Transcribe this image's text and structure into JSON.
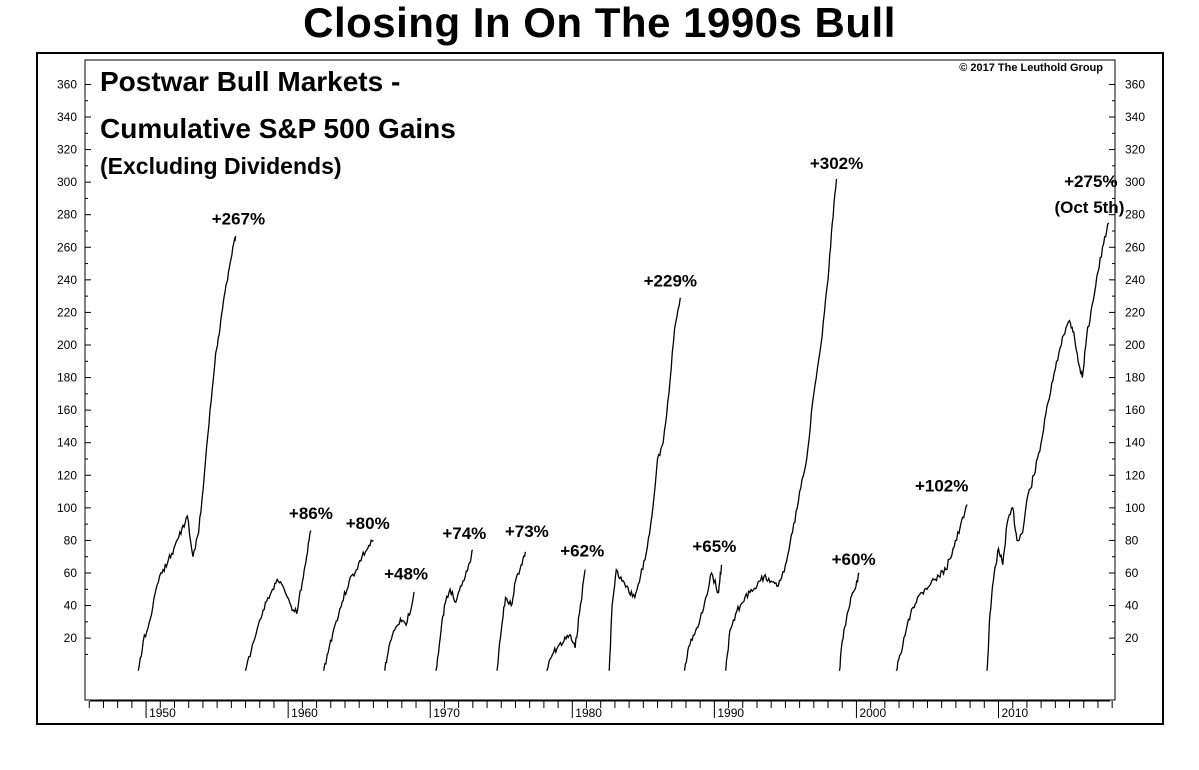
{
  "headline": "Closing In On The 1990s Bull",
  "copyright": "© 2017 The Leuthold  Group",
  "chart_data": {
    "type": "line",
    "title": "Postwar Bull Markets -",
    "title_line2": "Cumulative S&P 500 Gains",
    "subtitle": "(Excluding Dividends)",
    "xlabel": "",
    "ylabel": "",
    "x_ticks": [
      "1950",
      "1960",
      "1970",
      "1980",
      "1990",
      "2000",
      "2010"
    ],
    "y_ticks": [
      20,
      40,
      60,
      80,
      100,
      120,
      140,
      160,
      180,
      200,
      220,
      240,
      260,
      280,
      300,
      320,
      340,
      360
    ],
    "xlim": [
      1945.7,
      2018.2
    ],
    "ylim": [
      -18,
      375
    ],
    "grid": false,
    "series": [
      {
        "x": [
          1949.45,
          1949.8,
          1950.3,
          1950.7,
          1951.2,
          1951.8,
          1952.3,
          1952.9,
          1953.3,
          1953.7,
          1954.1,
          1954.5,
          1954.9,
          1955.2,
          1955.5,
          1955.8,
          1956.1,
          1956.3
        ],
        "y": [
          0,
          18,
          32,
          50,
          62,
          72,
          82,
          95,
          70,
          85,
          120,
          160,
          195,
          210,
          230,
          245,
          260,
          267
        ]
      },
      {
        "x": [
          1957.0,
          1957.4,
          1957.9,
          1958.4,
          1958.9,
          1959.3,
          1959.8,
          1960.2,
          1960.6,
          1961.0,
          1961.3,
          1961.6
        ],
        "y": [
          0,
          12,
          28,
          42,
          50,
          55,
          48,
          40,
          35,
          55,
          70,
          86
        ]
      },
      {
        "x": [
          1962.5,
          1962.9,
          1963.3,
          1963.8,
          1964.3,
          1964.8,
          1965.2,
          1965.6,
          1966.0
        ],
        "y": [
          0,
          15,
          28,
          42,
          55,
          62,
          70,
          75,
          80
        ]
      },
      {
        "x": [
          1966.8,
          1967.1,
          1967.5,
          1967.9,
          1968.3,
          1968.7,
          1968.9
        ],
        "y": [
          0,
          15,
          25,
          32,
          28,
          40,
          48
        ]
      },
      {
        "x": [
          1970.4,
          1970.7,
          1971.0,
          1971.4,
          1971.8,
          1972.3,
          1972.7,
          1973.0
        ],
        "y": [
          0,
          20,
          40,
          50,
          42,
          55,
          65,
          74
        ]
      },
      {
        "x": [
          1974.7,
          1975.0,
          1975.3,
          1975.7,
          1976.0,
          1976.4,
          1976.7
        ],
        "y": [
          0,
          25,
          45,
          40,
          55,
          65,
          73
        ]
      },
      {
        "x": [
          1978.2,
          1978.6,
          1979.0,
          1979.4,
          1979.8,
          1980.2,
          1980.5,
          1980.9
        ],
        "y": [
          0,
          10,
          15,
          18,
          22,
          14,
          35,
          62
        ]
      },
      {
        "x": [
          1982.6,
          1982.8,
          1983.1,
          1983.5,
          1984.0,
          1984.4,
          1984.8,
          1985.2,
          1985.6,
          1986.0,
          1986.4,
          1986.8,
          1987.2,
          1987.6
        ],
        "y": [
          0,
          40,
          62,
          55,
          48,
          45,
          58,
          72,
          95,
          130,
          140,
          170,
          210,
          229
        ]
      },
      {
        "x": [
          1987.9,
          1988.2,
          1988.6,
          1989.0,
          1989.4,
          1989.8,
          1990.3,
          1990.5
        ],
        "y": [
          0,
          15,
          22,
          32,
          45,
          60,
          48,
          65
        ]
      },
      {
        "x": [
          1990.8,
          1991.1,
          1991.5,
          1992.0,
          1992.5,
          1993.0,
          1993.5,
          1994.0,
          1994.5,
          1995.0,
          1995.5,
          1996.0,
          1996.5,
          1997.0,
          1997.5,
          1998.0,
          1998.3,
          1998.6
        ],
        "y": [
          0,
          25,
          35,
          42,
          48,
          52,
          58,
          55,
          52,
          65,
          85,
          110,
          130,
          170,
          200,
          240,
          275,
          302
        ]
      },
      {
        "x": [
          1998.8,
          1999.0,
          1999.3,
          1999.6,
          1999.9,
          2000.2
        ],
        "y": [
          0,
          18,
          32,
          45,
          50,
          60
        ]
      },
      {
        "x": [
          2002.8,
          2003.1,
          2003.5,
          2003.9,
          2004.3,
          2004.8,
          2005.3,
          2005.8,
          2006.3,
          2006.8,
          2007.3,
          2007.8
        ],
        "y": [
          0,
          10,
          25,
          38,
          45,
          50,
          55,
          58,
          62,
          75,
          88,
          102
        ]
      },
      {
        "x": [
          2009.2,
          2009.4,
          2009.7,
          2010.0,
          2010.3,
          2010.6,
          2011.0,
          2011.3,
          2011.7,
          2012.0,
          2012.5,
          2013.0,
          2013.5,
          2014.0,
          2014.5,
          2015.0,
          2015.3,
          2015.6,
          2015.9,
          2016.2,
          2016.6,
          2017.0,
          2017.4,
          2017.76
        ],
        "y": [
          0,
          35,
          60,
          75,
          65,
          90,
          100,
          80,
          85,
          105,
          120,
          140,
          165,
          185,
          205,
          215,
          208,
          190,
          180,
          205,
          225,
          245,
          262,
          275
        ]
      }
    ],
    "annotations": [
      {
        "text": "+267%",
        "x": 1956.5,
        "y": 274
      },
      {
        "text": "+86%",
        "x": 1961.6,
        "y": 93
      },
      {
        "text": "+80%",
        "x": 1965.6,
        "y": 87
      },
      {
        "text": "+48%",
        "x": 1968.3,
        "y": 56
      },
      {
        "text": "+74%",
        "x": 1972.4,
        "y": 81
      },
      {
        "text": "+73%",
        "x": 1976.8,
        "y": 82
      },
      {
        "text": "+62%",
        "x": 1980.7,
        "y": 70
      },
      {
        "text": "+229%",
        "x": 1986.9,
        "y": 236
      },
      {
        "text": "+65%",
        "x": 1990.0,
        "y": 73
      },
      {
        "text": "+302%",
        "x": 1998.6,
        "y": 308
      },
      {
        "text": "+60%",
        "x": 1999.8,
        "y": 65
      },
      {
        "text": "+102%",
        "x": 2006.0,
        "y": 110
      },
      {
        "text": "+275%",
        "x": 2016.5,
        "y": 297
      },
      {
        "text": "(Oct 5th)",
        "x": 2016.4,
        "y": 281
      }
    ]
  }
}
